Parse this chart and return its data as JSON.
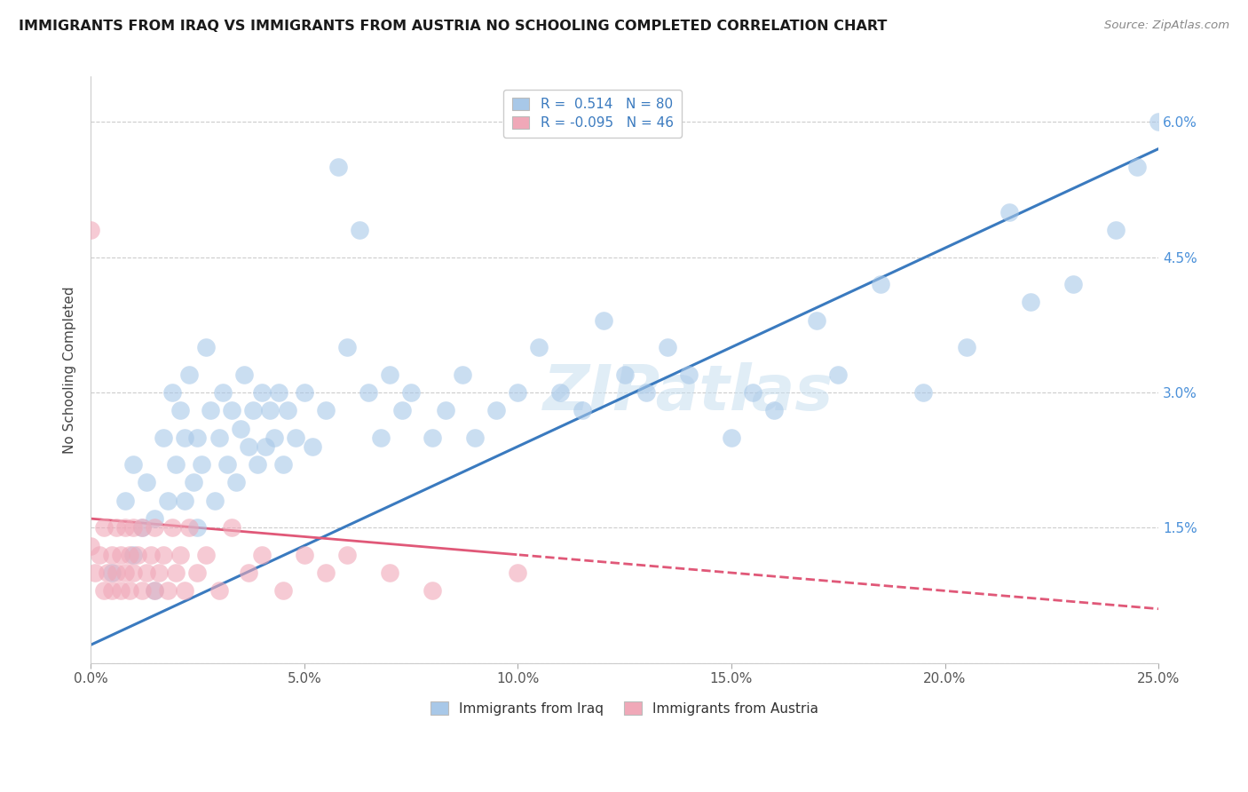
{
  "title": "IMMIGRANTS FROM IRAQ VS IMMIGRANTS FROM AUSTRIA NO SCHOOLING COMPLETED CORRELATION CHART",
  "source": "Source: ZipAtlas.com",
  "ylabel": "No Schooling Completed",
  "xlim": [
    0.0,
    0.25
  ],
  "ylim": [
    0.0,
    0.065
  ],
  "xticks": [
    0.0,
    0.05,
    0.1,
    0.15,
    0.2,
    0.25
  ],
  "xticklabels": [
    "0.0%",
    "5.0%",
    "10.0%",
    "15.0%",
    "20.0%",
    "25.0%"
  ],
  "yticks": [
    0.0,
    0.015,
    0.03,
    0.045,
    0.06
  ],
  "yticklabels_right": [
    "",
    "1.5%",
    "3.0%",
    "4.5%",
    "6.0%"
  ],
  "iraq_R": 0.514,
  "iraq_N": 80,
  "austria_R": -0.095,
  "austria_N": 46,
  "iraq_color": "#a8c8e8",
  "austria_color": "#f0a8b8",
  "iraq_line_color": "#3a7abf",
  "austria_line_color": "#e05878",
  "watermark_text": "ZIPatlas",
  "legend_iraq_label": "R =  0.514   N = 80",
  "legend_austria_label": "R = -0.095   N = 46",
  "bottom_legend_iraq": "Immigrants from Iraq",
  "bottom_legend_austria": "Immigrants from Austria",
  "iraq_x": [
    0.005,
    0.008,
    0.01,
    0.01,
    0.012,
    0.013,
    0.015,
    0.015,
    0.017,
    0.018,
    0.019,
    0.02,
    0.021,
    0.022,
    0.022,
    0.023,
    0.024,
    0.025,
    0.025,
    0.026,
    0.027,
    0.028,
    0.029,
    0.03,
    0.031,
    0.032,
    0.033,
    0.034,
    0.035,
    0.036,
    0.037,
    0.038,
    0.039,
    0.04,
    0.041,
    0.042,
    0.043,
    0.044,
    0.045,
    0.046,
    0.048,
    0.05,
    0.052,
    0.055,
    0.058,
    0.06,
    0.063,
    0.065,
    0.068,
    0.07,
    0.073,
    0.075,
    0.08,
    0.083,
    0.087,
    0.09,
    0.095,
    0.1,
    0.105,
    0.11,
    0.115,
    0.12,
    0.125,
    0.13,
    0.135,
    0.14,
    0.15,
    0.155,
    0.16,
    0.17,
    0.175,
    0.185,
    0.195,
    0.205,
    0.215,
    0.22,
    0.23,
    0.24,
    0.245,
    0.25
  ],
  "iraq_y": [
    0.01,
    0.018,
    0.012,
    0.022,
    0.015,
    0.02,
    0.008,
    0.016,
    0.025,
    0.018,
    0.03,
    0.022,
    0.028,
    0.018,
    0.025,
    0.032,
    0.02,
    0.015,
    0.025,
    0.022,
    0.035,
    0.028,
    0.018,
    0.025,
    0.03,
    0.022,
    0.028,
    0.02,
    0.026,
    0.032,
    0.024,
    0.028,
    0.022,
    0.03,
    0.024,
    0.028,
    0.025,
    0.03,
    0.022,
    0.028,
    0.025,
    0.03,
    0.024,
    0.028,
    0.055,
    0.035,
    0.048,
    0.03,
    0.025,
    0.032,
    0.028,
    0.03,
    0.025,
    0.028,
    0.032,
    0.025,
    0.028,
    0.03,
    0.035,
    0.03,
    0.028,
    0.038,
    0.032,
    0.03,
    0.035,
    0.032,
    0.025,
    0.03,
    0.028,
    0.038,
    0.032,
    0.042,
    0.03,
    0.035,
    0.05,
    0.04,
    0.042,
    0.048,
    0.055,
    0.06
  ],
  "austria_x": [
    0.0,
    0.001,
    0.002,
    0.003,
    0.003,
    0.004,
    0.005,
    0.005,
    0.006,
    0.006,
    0.007,
    0.007,
    0.008,
    0.008,
    0.009,
    0.009,
    0.01,
    0.01,
    0.011,
    0.012,
    0.012,
    0.013,
    0.014,
    0.015,
    0.015,
    0.016,
    0.017,
    0.018,
    0.019,
    0.02,
    0.021,
    0.022,
    0.023,
    0.025,
    0.027,
    0.03,
    0.033,
    0.037,
    0.04,
    0.045,
    0.05,
    0.055,
    0.06,
    0.07,
    0.08,
    0.1
  ],
  "austria_y": [
    0.013,
    0.01,
    0.012,
    0.008,
    0.015,
    0.01,
    0.012,
    0.008,
    0.015,
    0.01,
    0.012,
    0.008,
    0.015,
    0.01,
    0.012,
    0.008,
    0.015,
    0.01,
    0.012,
    0.008,
    0.015,
    0.01,
    0.012,
    0.008,
    0.015,
    0.01,
    0.012,
    0.008,
    0.015,
    0.01,
    0.012,
    0.008,
    0.015,
    0.01,
    0.012,
    0.008,
    0.015,
    0.01,
    0.012,
    0.008,
    0.012,
    0.01,
    0.012,
    0.01,
    0.008,
    0.01
  ],
  "austria_extra_x": [
    0.0
  ],
  "austria_extra_y": [
    0.048
  ]
}
